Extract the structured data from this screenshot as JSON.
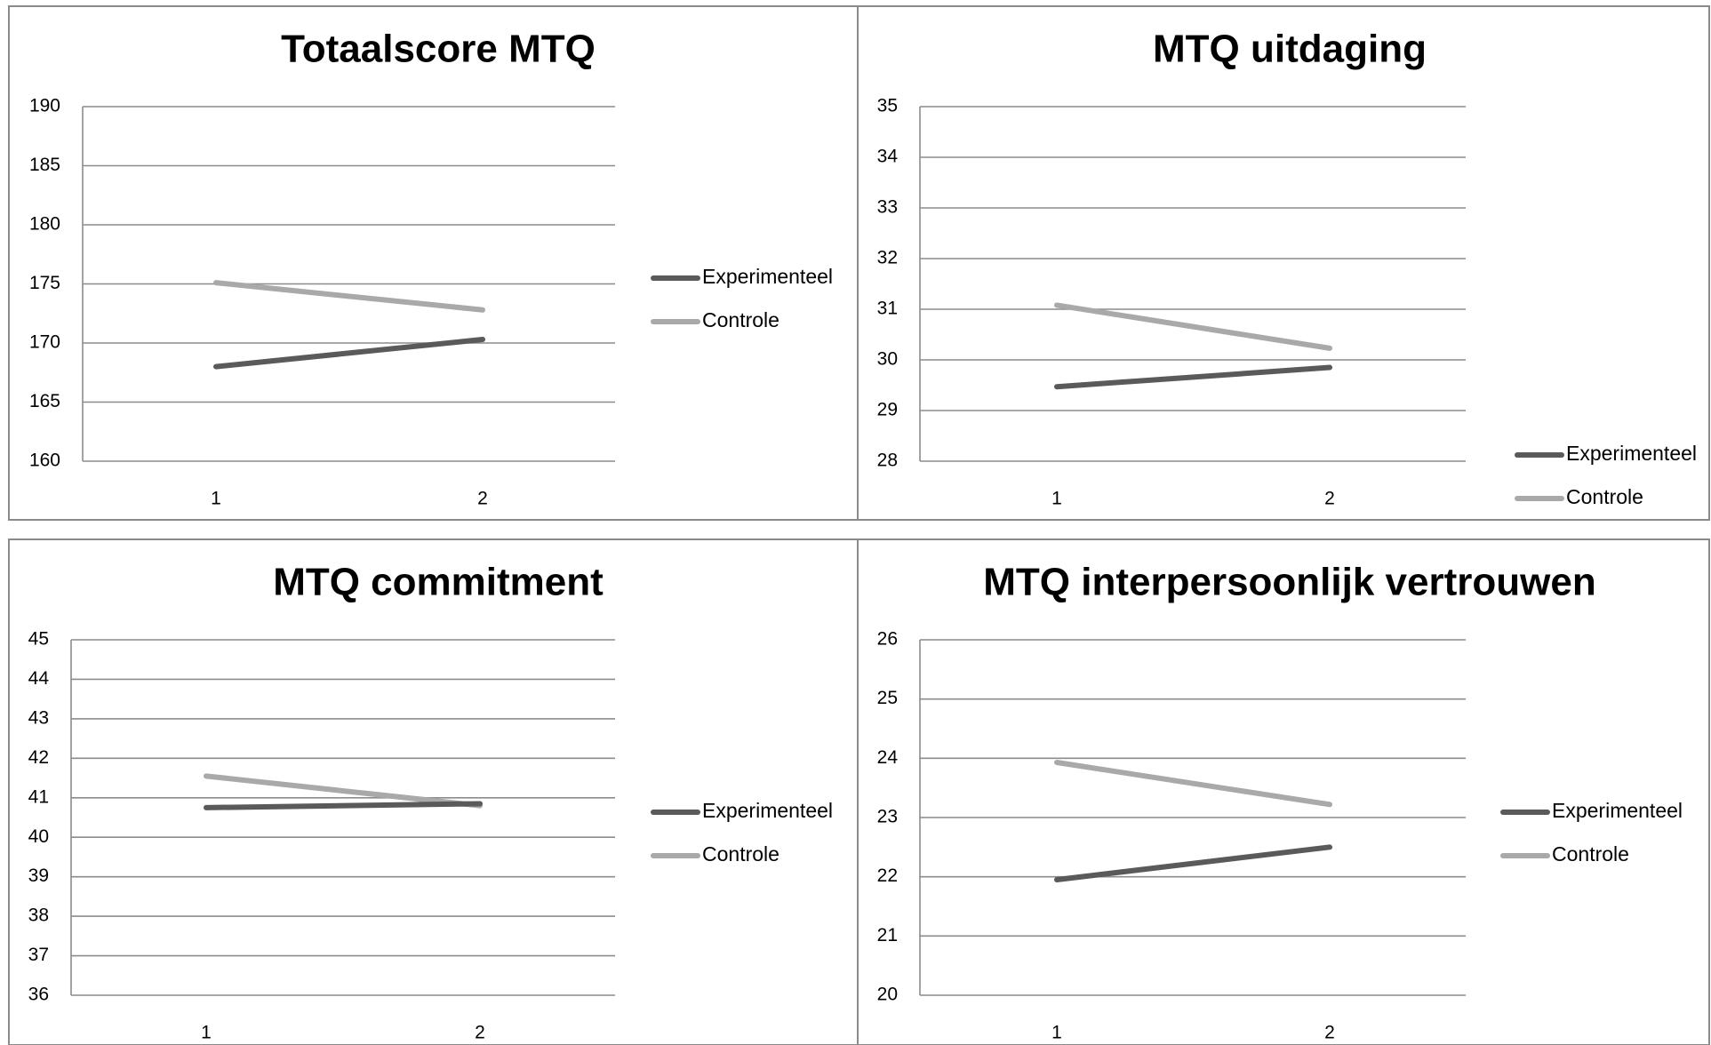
{
  "colors": {
    "Experimenteel": "#5a5a5a",
    "Controle": "#a9a9a9"
  },
  "chart_data": [
    {
      "type": "line",
      "title": "Totaalscore MTQ",
      "categories": [
        "1",
        "2"
      ],
      "ylim": [
        160,
        190
      ],
      "yticks": [
        "160",
        "165",
        "170",
        "175",
        "180",
        "185",
        "190"
      ],
      "series": [
        {
          "name": "Experimenteel",
          "values": [
            168.0,
            170.3
          ]
        },
        {
          "name": "Controle",
          "values": [
            175.1,
            172.8
          ]
        }
      ],
      "grid": true,
      "legend": "right"
    },
    {
      "type": "line",
      "title": "MTQ uitdaging",
      "categories": [
        "1",
        "2"
      ],
      "ylim": [
        28,
        35
      ],
      "yticks": [
        "28",
        "29",
        "30",
        "31",
        "32",
        "33",
        "34",
        "35"
      ],
      "series": [
        {
          "name": "Experimenteel",
          "values": [
            29.47,
            29.85
          ]
        },
        {
          "name": "Controle",
          "values": [
            31.08,
            30.23
          ]
        }
      ],
      "grid": true,
      "legend": "bottom-right"
    },
    {
      "type": "line",
      "title": "MTQ commitment",
      "categories": [
        "1",
        "2"
      ],
      "ylim": [
        36,
        45
      ],
      "yticks": [
        "36",
        "37",
        "38",
        "39",
        "40",
        "41",
        "42",
        "43",
        "44",
        "45"
      ],
      "series": [
        {
          "name": "Experimenteel",
          "values": [
            40.75,
            40.85
          ]
        },
        {
          "name": "Controle",
          "values": [
            41.55,
            40.8
          ]
        }
      ],
      "grid": true,
      "legend": "right"
    },
    {
      "type": "line",
      "title": "MTQ interpersoonlijk vertrouwen",
      "categories": [
        "1",
        "2"
      ],
      "ylim": [
        20,
        26
      ],
      "yticks": [
        "20",
        "21",
        "22",
        "23",
        "24",
        "25",
        "26"
      ],
      "series": [
        {
          "name": "Experimenteel",
          "values": [
            21.95,
            22.5
          ]
        },
        {
          "name": "Controle",
          "values": [
            23.93,
            23.22
          ]
        }
      ],
      "grid": true,
      "legend": "right"
    }
  ]
}
